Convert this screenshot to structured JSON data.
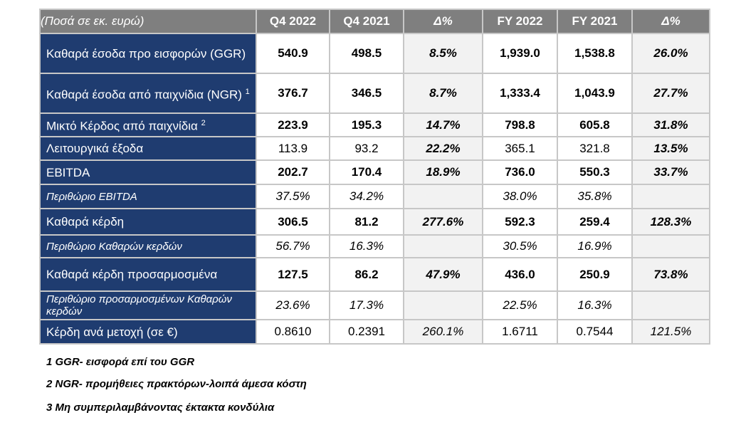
{
  "header": [
    "(Ποσά σε εκ. ευρώ)",
    "Q4 2022",
    "Q4 2021",
    "Δ%",
    "FY 2022",
    "FY 2021",
    "Δ%"
  ],
  "rows": [
    {
      "label": "Καθαρά έσοδα προ εισφορών (GGR)",
      "sup": "",
      "style": "bold",
      "height": 56,
      "values": [
        "540.9",
        "498.5",
        "8.5%",
        "1,939.0",
        "1,538.8",
        "26.0%"
      ]
    },
    {
      "label": "Καθαρά έσοδα από παιχνίδια (NGR)",
      "sup": "1",
      "style": "bold",
      "height": 56,
      "values": [
        "376.7",
        "346.5",
        "8.7%",
        "1,333.4",
        "1,043.9",
        "27.7%"
      ]
    },
    {
      "label": "Μικτό Κέρδος από παιχνίδια",
      "sup": "2",
      "style": "bold",
      "height": 33,
      "values": [
        "223.9",
        "195.3",
        "14.7%",
        "798.8",
        "605.8",
        "31.8%"
      ]
    },
    {
      "label": "Λειτουργικά έξοδα",
      "sup": "",
      "style": "normal",
      "height": 33,
      "values": [
        "113.9",
        "93.2",
        "22.2%",
        "365.1",
        "321.8",
        "13.5%"
      ]
    },
    {
      "label": "EBITDA",
      "sup": "",
      "style": "bold",
      "height": 34,
      "values": [
        "202.7",
        "170.4",
        "18.9%",
        "736.0",
        "550.3",
        "33.7%"
      ]
    },
    {
      "label": "Περιθώριο EBITDA",
      "sup": "",
      "style": "italic",
      "height": 34,
      "values": [
        "37.5%",
        "34.2%",
        "",
        "38.0%",
        "35.8%",
        ""
      ]
    },
    {
      "label": "Καθαρά κέρδη",
      "sup": "",
      "style": "bold",
      "height": 37,
      "values": [
        "306.5",
        "81.2",
        "277.6%",
        "592.3",
        "259.4",
        "128.3%"
      ]
    },
    {
      "label": "Περιθώριο Καθαρών κερδών",
      "sup": "",
      "style": "italic",
      "height": 32,
      "values": [
        "56.7%",
        "16.3%",
        "",
        "30.5%",
        "16.9%",
        ""
      ]
    },
    {
      "label": "Καθαρά κέρδη προσαρμοσμένα",
      "sup": "",
      "style": "bold",
      "height": 47,
      "values": [
        "127.5",
        "86.2",
        "47.9%",
        "436.0",
        "250.9",
        "73.8%"
      ]
    },
    {
      "label": "Περιθώριο προσαρμοσμένων Καθαρών κερδών",
      "sup": "",
      "style": "italic",
      "height": 40,
      "values": [
        "23.6%",
        "17.3%",
        "",
        "22.5%",
        "16.3%",
        ""
      ]
    },
    {
      "label": "Κέρδη ανά μετοχή (σε €)",
      "sup": "",
      "style": "normal",
      "height": 34,
      "values": [
        "0.8610",
        "0.2391",
        "260.1%",
        "1.6711",
        "0.7544",
        "121.5%"
      ]
    }
  ],
  "footnotes": [
    "1 GGR- εισφορά επί του GGR",
    "2 NGR- προμήθειες πρακτόρων-λοιπά άμεσα κόστη",
    "3 Μη συμπεριλαμβάνοντας έκτακτα κονδύλια"
  ]
}
